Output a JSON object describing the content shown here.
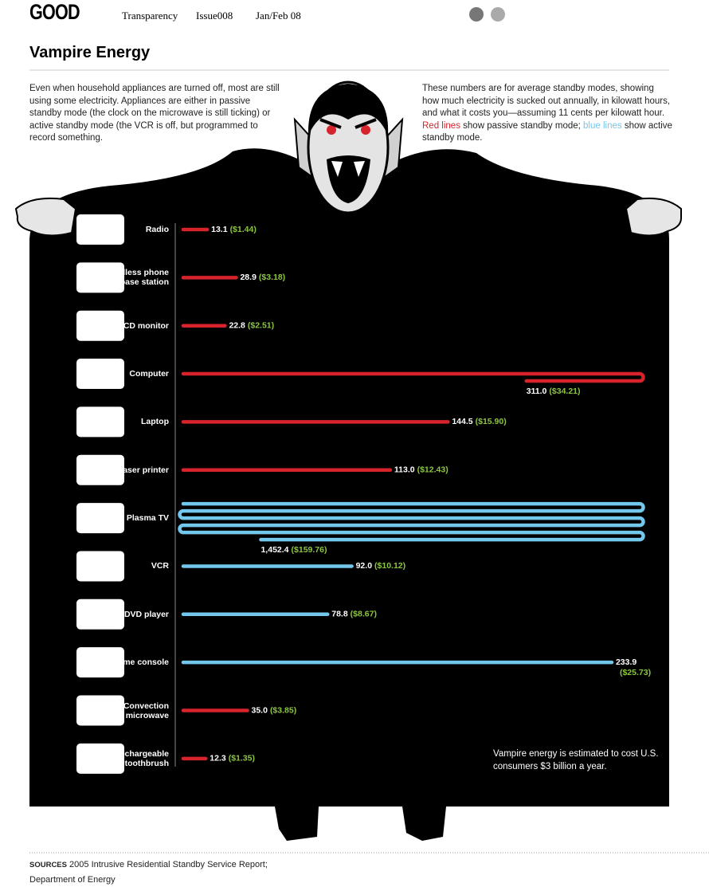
{
  "header": {
    "logo": "GOOD",
    "nav": [
      "Transparency",
      "Issue008",
      "Jan/Feb 08"
    ]
  },
  "title": "Vampire Energy",
  "intro": "Even when household appliances are turned off, most are still using some electricity. Appliances are either in passive standby mode (the clock on the microwave is still ticking) or active standby mode (the VCR is off, but programmed to record something.",
  "explainer": {
    "before": "These numbers are for average standby modes, showing how much electricity is sucked out annually, in kilowatt hours, and what it costs you—assuming 11 cents per kilowatt hour.",
    "red": "Red lines",
    "middle": "show passive standby mode;",
    "blue": "blue lines",
    "after": "show active standby mode."
  },
  "chart_data": {
    "type": "bar",
    "categories": [
      "Radio",
      "Cordless phone base station",
      "LCD monitor",
      "Computer",
      "Laptop",
      "Laser printer",
      "Plasma TV",
      "VCR",
      "DVD player",
      "Game console",
      "Convection microwave",
      "Rechargeable toothbrush"
    ],
    "values": [
      13.1,
      28.9,
      22.8,
      311.0,
      144.5,
      113.0,
      1452.4,
      92.0,
      78.8,
      233.9,
      35.0,
      12.3
    ],
    "value_labels": [
      "13.1",
      "28.9",
      "22.8",
      "311.0",
      "144.5",
      "113.0",
      "1,452.4",
      "92.0",
      "78.8",
      "233.9",
      "35.0",
      "12.3"
    ],
    "cost_labels": [
      "($1.44)",
      "($3.18)",
      "($2.51)",
      "($34.21)",
      "($15.90)",
      "($12.43)",
      "($159.76)",
      "($10.12)",
      "($8.67)",
      "($25.73)",
      "($3.85)",
      "($1.35)"
    ],
    "colors": [
      "#d7232b",
      "#d7232b",
      "#d7232b",
      "#d7232b",
      "#d7232b",
      "#d7232b",
      "#74c7ec",
      "#74c7ec",
      "#74c7ec",
      "#74c7ec",
      "#d7232b",
      "#d7232b"
    ],
    "cost_color": "#8cc63f"
  },
  "note": "Vampire energy is estimated to cost U.S. consumers $3 billion a year.",
  "sources": {
    "label": "SOURCES",
    "text": "2005 Intrusive Residential Standby Service Report; Department of Energy"
  }
}
